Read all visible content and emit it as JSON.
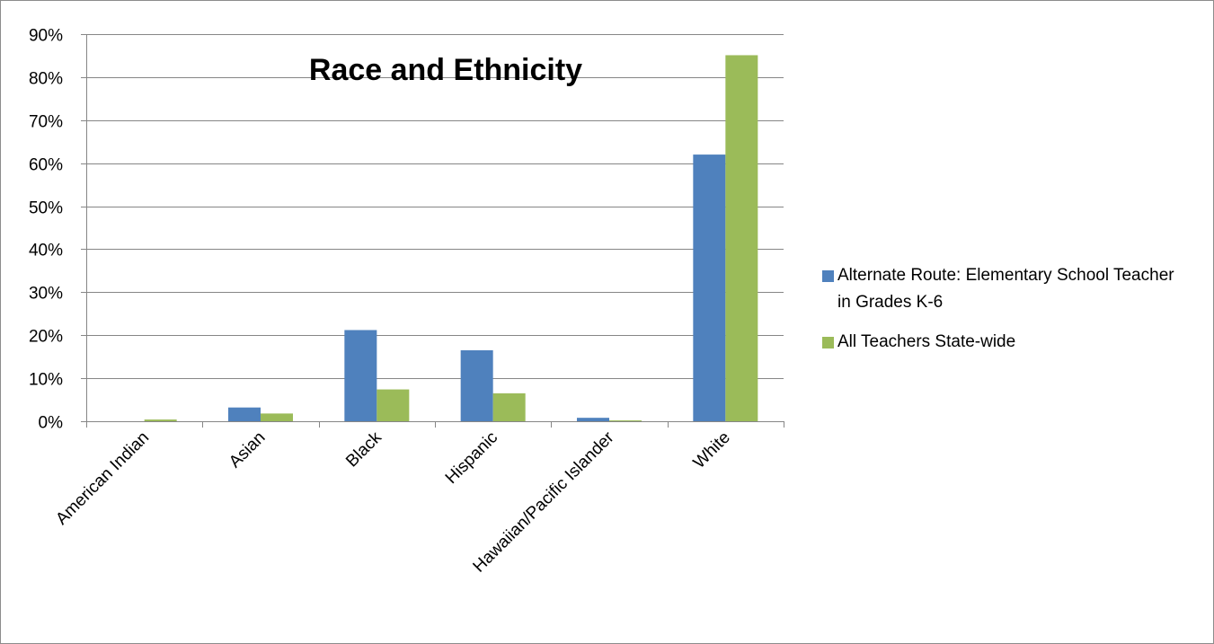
{
  "chart_data": {
    "type": "bar",
    "title": "Race and Ethnicity",
    "xlabel": "",
    "ylabel": "",
    "categories": [
      "American Indian",
      "Asian",
      "Black",
      "Hispanic",
      "Hawaiian/Pacific Islander",
      "White"
    ],
    "series": [
      {
        "name": "Alternate Route: Elementary School Teacher in Grades K-6",
        "color": "#4F81BD",
        "values": [
          0.0,
          3.2,
          21.2,
          16.5,
          0.8,
          62.0
        ]
      },
      {
        "name": "All Teachers State-wide",
        "color": "#9BBB59",
        "values": [
          0.4,
          1.8,
          7.4,
          6.5,
          0.2,
          85.1
        ]
      }
    ],
    "ylim": [
      0,
      90
    ],
    "yticks": [
      "0%",
      "10%",
      "20%",
      "30%",
      "40%",
      "50%",
      "60%",
      "70%",
      "80%",
      "90%"
    ],
    "grid": true,
    "legend_position": "right"
  }
}
